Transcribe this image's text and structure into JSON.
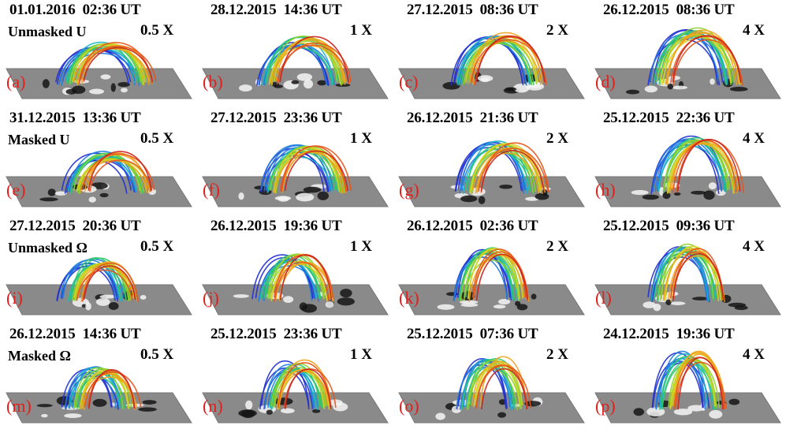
{
  "panels": [
    {
      "letter": "(a)",
      "date": "01.01.2016  02:36 UT",
      "mode": "Unmasked U",
      "factor": "0.5 X"
    },
    {
      "letter": "(b)",
      "date": "28.12.2015  14:36 UT",
      "mode": "",
      "factor": "1 X"
    },
    {
      "letter": "(c)",
      "date": "27.12.2015  08:36 UT",
      "mode": "",
      "factor": "2 X"
    },
    {
      "letter": "(d)",
      "date": "26.12.2015  08:36 UT",
      "mode": "",
      "factor": "4 X"
    },
    {
      "letter": "(e)",
      "date": "31.12.2015  13:36 UT",
      "mode": "Masked U",
      "factor": "0.5 X"
    },
    {
      "letter": "(f)",
      "date": "27.12.2015  23:36 UT",
      "mode": "",
      "factor": "1 X"
    },
    {
      "letter": "(g)",
      "date": "26.12.2015  21:36 UT",
      "mode": "",
      "factor": "2 X"
    },
    {
      "letter": "(h)",
      "date": "25.12.2015  22:36 UT",
      "mode": "",
      "factor": "4 X"
    },
    {
      "letter": "(i)",
      "date": "27.12.2015  20:36 UT",
      "mode": "Unmasked Ω",
      "factor": "0.5 X"
    },
    {
      "letter": "(j)",
      "date": "26.12.2015  19:36 UT",
      "mode": "",
      "factor": "1 X"
    },
    {
      "letter": "(k)",
      "date": "26.12.2015  02:36 UT",
      "mode": "",
      "factor": "2 X"
    },
    {
      "letter": "(l)",
      "date": "25.12.2015  09:36 UT",
      "mode": "",
      "factor": "4 X"
    },
    {
      "letter": "(m)",
      "date": "26.12.2015  14:36 UT",
      "mode": "Masked Ω",
      "factor": "0.5 X"
    },
    {
      "letter": "(n)",
      "date": "25.12.2015  23:36 UT",
      "mode": "",
      "factor": "1 X"
    },
    {
      "letter": "(o)",
      "date": "25.12.2015  07:36 UT",
      "mode": "",
      "factor": "2 X"
    },
    {
      "letter": "(p)",
      "date": "24.12.2015  19:36 UT",
      "mode": "",
      "factor": "4 X"
    }
  ],
  "colors": {
    "plane": "#8a8a8a",
    "plane_dark": "#6a6a6a",
    "label_letter": "#e0201c",
    "loop_palette": [
      "#1f2fd0",
      "#1f7be0",
      "#18b4c8",
      "#2ec86a",
      "#8fd12a",
      "#d7d21e",
      "#f0a21a",
      "#e5521a",
      "#c9201a"
    ]
  }
}
